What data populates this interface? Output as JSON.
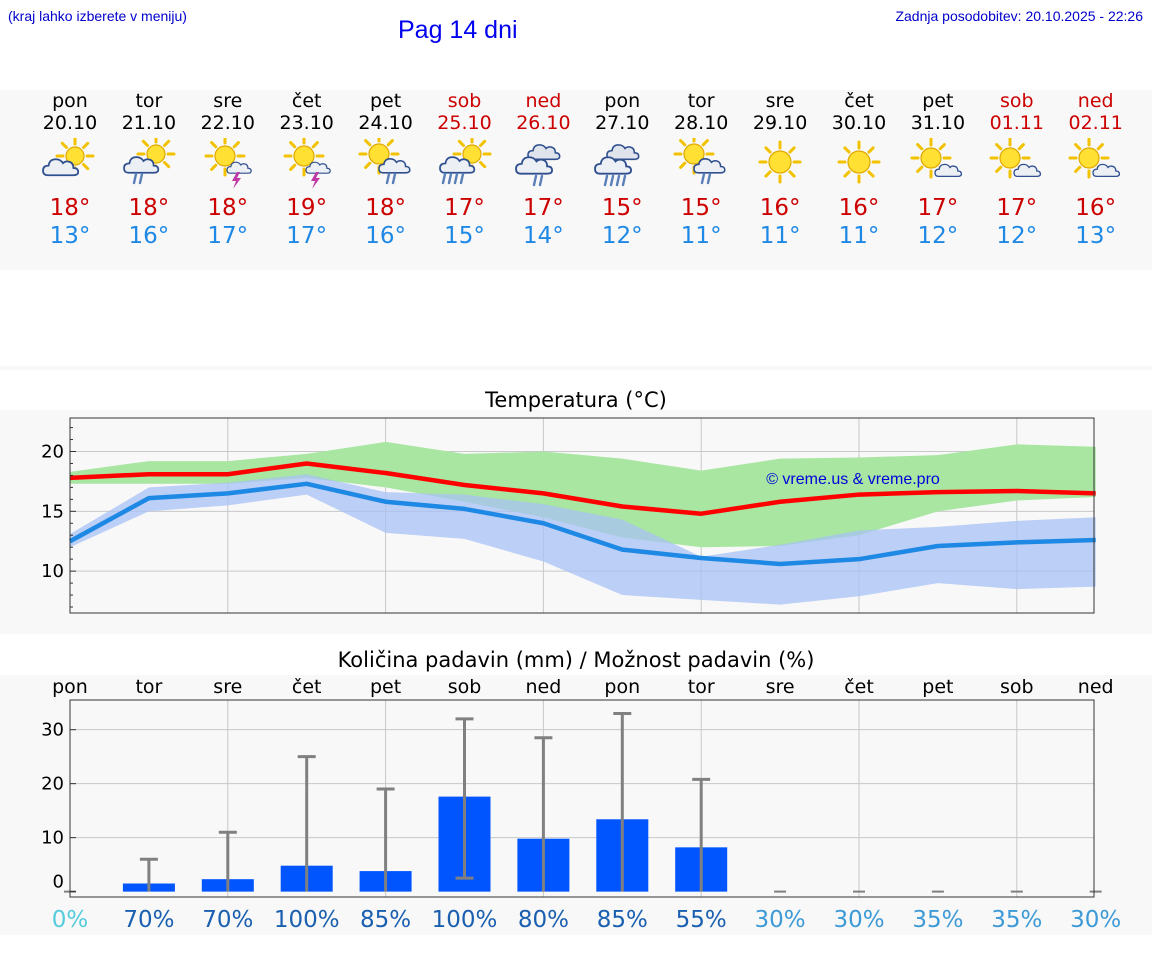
{
  "header": {
    "hint": "(kraj lahko izberete v meniju)",
    "title": "Pag 14 dni",
    "updated": "Zadnja posodobitev: 20.10.2025 - 22:26"
  },
  "colors": {
    "max_temp": "#ff0000",
    "min_temp": "#1e88e5",
    "max_band": "#a8e6a1",
    "min_band": "#a8c1f5",
    "precip_bar": "#0055ff",
    "error_bar": "#808080",
    "weekend": "#cc0000"
  },
  "days": [
    {
      "name": "pon",
      "date": "20.10",
      "icon": "partly-cloudy-icon",
      "tmax": "18°",
      "tmin": "13°",
      "weekend": false
    },
    {
      "name": "tor",
      "date": "21.10",
      "icon": "partly-cloudy-rain-icon",
      "tmax": "18°",
      "tmin": "16°",
      "weekend": false
    },
    {
      "name": "sre",
      "date": "22.10",
      "icon": "sun-storm-icon",
      "tmax": "18°",
      "tmin": "17°",
      "weekend": false
    },
    {
      "name": "čet",
      "date": "23.10",
      "icon": "sun-storm-icon",
      "tmax": "19°",
      "tmin": "17°",
      "weekend": false
    },
    {
      "name": "pet",
      "date": "24.10",
      "icon": "sun-cloud-rain-icon",
      "tmax": "18°",
      "tmin": "16°",
      "weekend": false
    },
    {
      "name": "sob",
      "date": "25.10",
      "icon": "partly-cloudy-heavy-rain-icon",
      "tmax": "17°",
      "tmin": "15°",
      "weekend": true
    },
    {
      "name": "ned",
      "date": "26.10",
      "icon": "cloudy-rain-icon",
      "tmax": "17°",
      "tmin": "14°",
      "weekend": true
    },
    {
      "name": "pon",
      "date": "27.10",
      "icon": "cloudy-heavy-rain-icon",
      "tmax": "15°",
      "tmin": "12°",
      "weekend": false
    },
    {
      "name": "tor",
      "date": "28.10",
      "icon": "sun-cloud-rain-icon",
      "tmax": "15°",
      "tmin": "11°",
      "weekend": false
    },
    {
      "name": "sre",
      "date": "29.10",
      "icon": "sun-icon",
      "tmax": "16°",
      "tmin": "11°",
      "weekend": false
    },
    {
      "name": "čet",
      "date": "30.10",
      "icon": "sun-icon",
      "tmax": "16°",
      "tmin": "11°",
      "weekend": false
    },
    {
      "name": "pet",
      "date": "31.10",
      "icon": "sun-small-cloud-icon",
      "tmax": "17°",
      "tmin": "12°",
      "weekend": false
    },
    {
      "name": "sob",
      "date": "01.11",
      "icon": "sun-small-cloud-icon",
      "tmax": "17°",
      "tmin": "12°",
      "weekend": true
    },
    {
      "name": "ned",
      "date": "02.11",
      "icon": "sun-small-cloud-icon",
      "tmax": "16°",
      "tmin": "13°",
      "weekend": true
    }
  ],
  "chart_data": [
    {
      "type": "line",
      "title": "Temperatura (°C)",
      "watermark": "© vreme.us & vreme.pro",
      "x": [
        0,
        1,
        2,
        3,
        4,
        5,
        6,
        7,
        8,
        9,
        10,
        11,
        12,
        13
      ],
      "ylim": [
        6.5,
        22.8
      ],
      "yticks": [
        10,
        15,
        20
      ],
      "grid": true,
      "series": [
        {
          "name": "max",
          "values": [
            17.8,
            18.1,
            18.1,
            19.0,
            18.2,
            17.2,
            16.5,
            15.4,
            14.8,
            15.8,
            16.4,
            16.6,
            16.7,
            16.5
          ],
          "band_low": [
            17.3,
            17.3,
            17.3,
            17.8,
            17.0,
            15.8,
            14.5,
            12.8,
            12.0,
            12.1,
            13.0,
            15.0,
            15.9,
            16.2
          ],
          "band_high": [
            18.3,
            19.2,
            19.2,
            19.8,
            20.8,
            19.8,
            20.0,
            19.4,
            18.4,
            19.4,
            19.5,
            19.7,
            20.6,
            20.4
          ]
        },
        {
          "name": "min",
          "values": [
            12.5,
            16.1,
            16.5,
            17.3,
            15.8,
            15.2,
            14.0,
            11.8,
            11.1,
            10.6,
            11.0,
            12.1,
            12.4,
            12.6
          ],
          "band_low": [
            12.0,
            15.0,
            15.5,
            16.4,
            13.2,
            12.7,
            10.8,
            8.0,
            7.6,
            7.2,
            7.9,
            9.0,
            8.5,
            8.7
          ],
          "band_high": [
            13.1,
            17.0,
            17.4,
            18.1,
            16.6,
            16.4,
            15.6,
            14.3,
            11.2,
            12.2,
            13.4,
            13.7,
            14.2,
            14.5
          ]
        }
      ]
    },
    {
      "type": "bar",
      "title": "Količina padavin (mm) / Možnost padavin (%)",
      "categories": [
        "pon",
        "tor",
        "sre",
        "čet",
        "pet",
        "sob",
        "ned",
        "pon",
        "tor",
        "sre",
        "čet",
        "pet",
        "sob",
        "ned"
      ],
      "values": [
        0,
        1.5,
        2.3,
        4.8,
        3.8,
        17.6,
        9.8,
        13.4,
        8.2,
        0,
        0,
        0,
        0,
        0
      ],
      "error_low": [
        0,
        0,
        0,
        0,
        0,
        2.5,
        0,
        0,
        0,
        0,
        0,
        0,
        0,
        0
      ],
      "error_high": [
        0,
        6,
        11,
        25,
        19,
        32,
        28.5,
        33,
        20.8,
        0,
        0,
        0,
        0,
        0
      ],
      "ylim": [
        -1,
        35.5
      ],
      "yticks": [
        0,
        10,
        20,
        30
      ],
      "probability": [
        "0%",
        "70%",
        "70%",
        "100%",
        "85%",
        "100%",
        "80%",
        "85%",
        "55%",
        "30%",
        "30%",
        "35%",
        "35%",
        "30%"
      ],
      "probability_colors": [
        "#55ccdd",
        "#1a5fb0",
        "#1a5fb0",
        "#1a5fb0",
        "#1a5fb0",
        "#1a5fb0",
        "#1a5fb0",
        "#1a5fb0",
        "#1a5fb0",
        "#3d9ad6",
        "#3d9ad6",
        "#3d9ad6",
        "#3d9ad6",
        "#3d9ad6"
      ]
    }
  ]
}
